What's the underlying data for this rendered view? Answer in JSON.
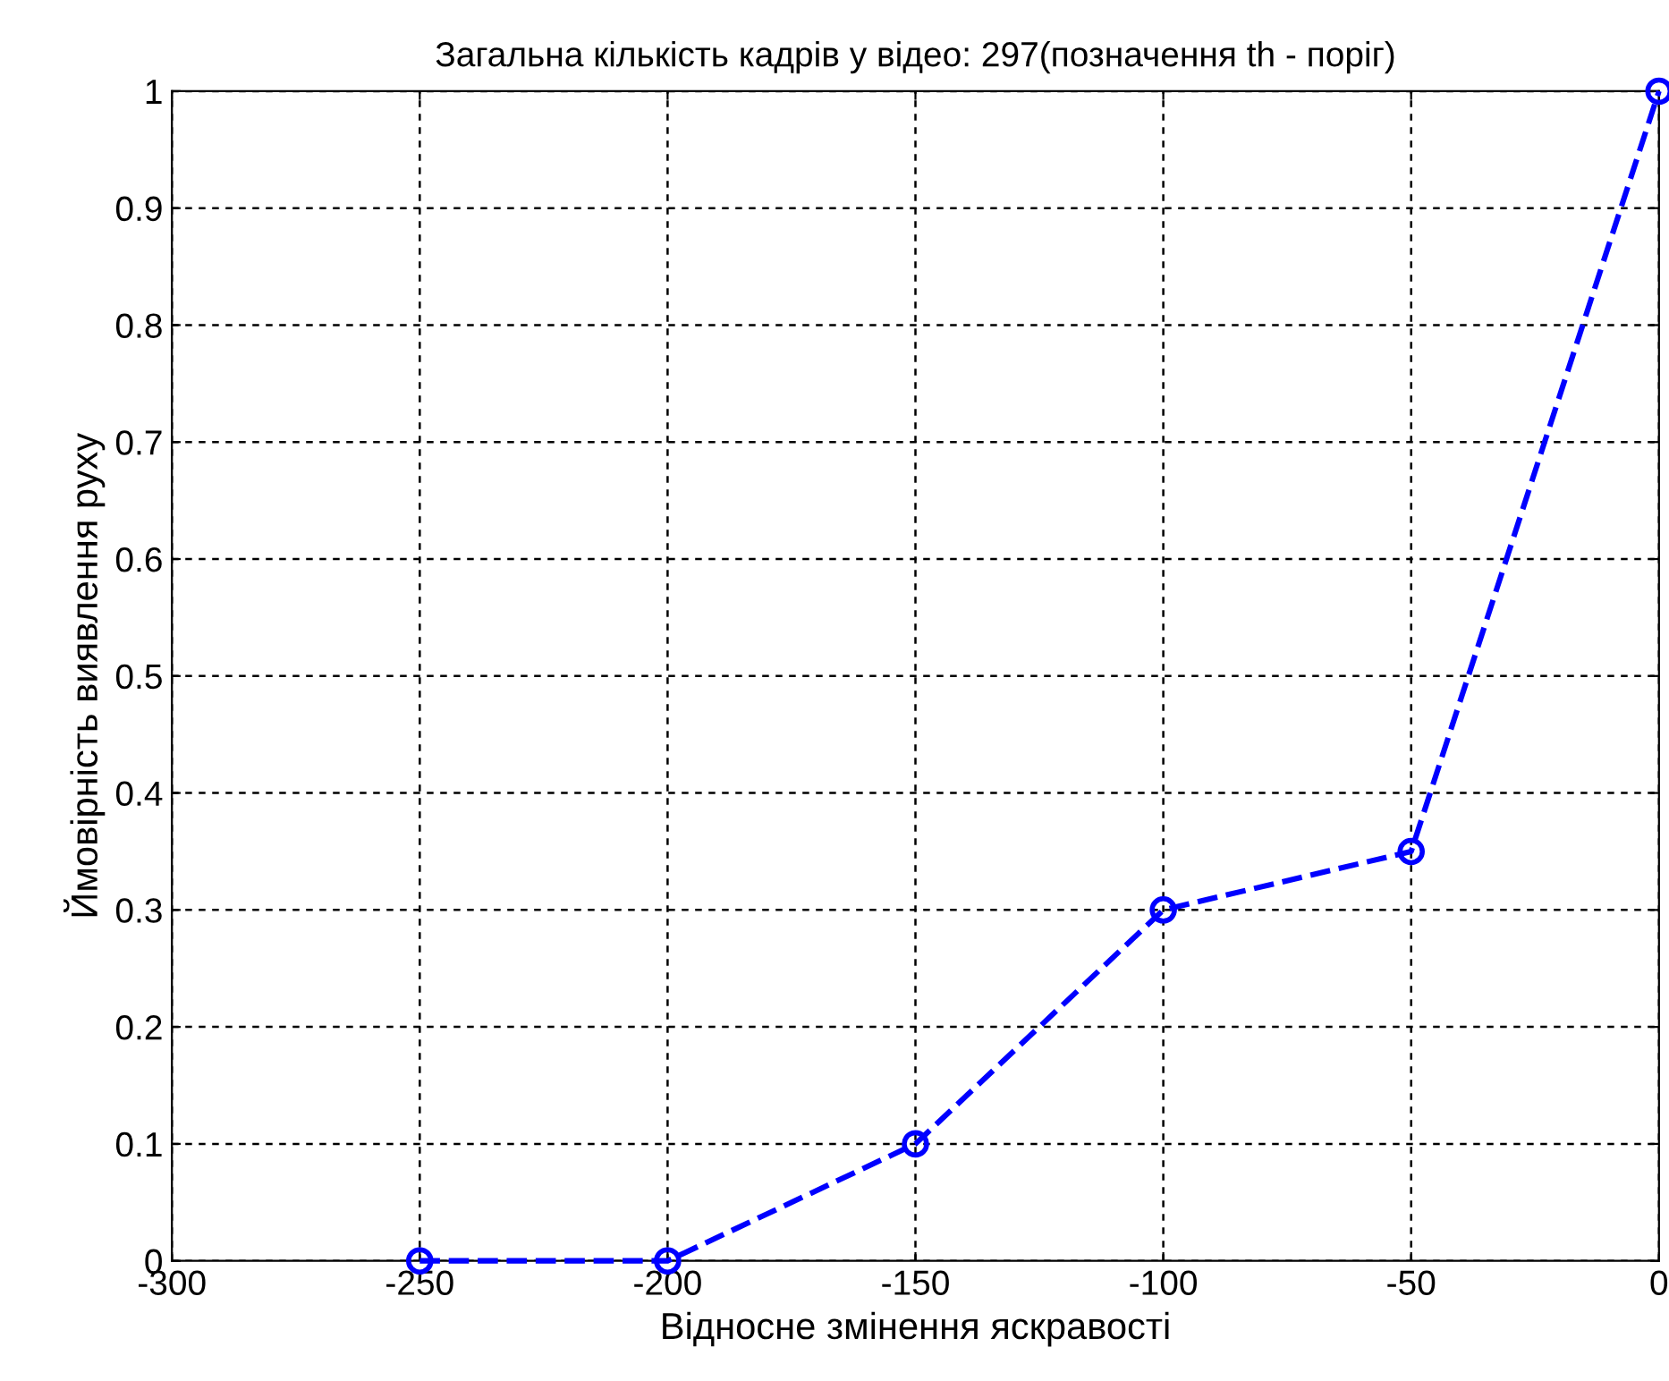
{
  "chart_data": {
    "type": "line",
    "title": "Загальна кількість кадрів у відео: 297(позначення th - поріг)",
    "xlabel": "Відносне змінення яскравості",
    "ylabel": "Ймовірність виявлення руху",
    "x": [
      -250,
      -200,
      -150,
      -100,
      -50,
      0
    ],
    "series": [
      {
        "color": "#0000ff",
        "values": [
          0,
          0,
          0.1,
          0.3,
          0.35,
          1
        ]
      }
    ],
    "xlim": [
      -300,
      0
    ],
    "xticks": [
      -300,
      -250,
      -200,
      -150,
      -100,
      -50,
      0
    ],
    "ylim": [
      0,
      1
    ],
    "yticks": [
      0,
      0.1,
      0.2,
      0.3,
      0.4,
      0.5,
      0.6,
      0.7,
      0.8,
      0.9,
      1
    ],
    "grid": true,
    "marker": "circle",
    "line_style": "dashed"
  }
}
